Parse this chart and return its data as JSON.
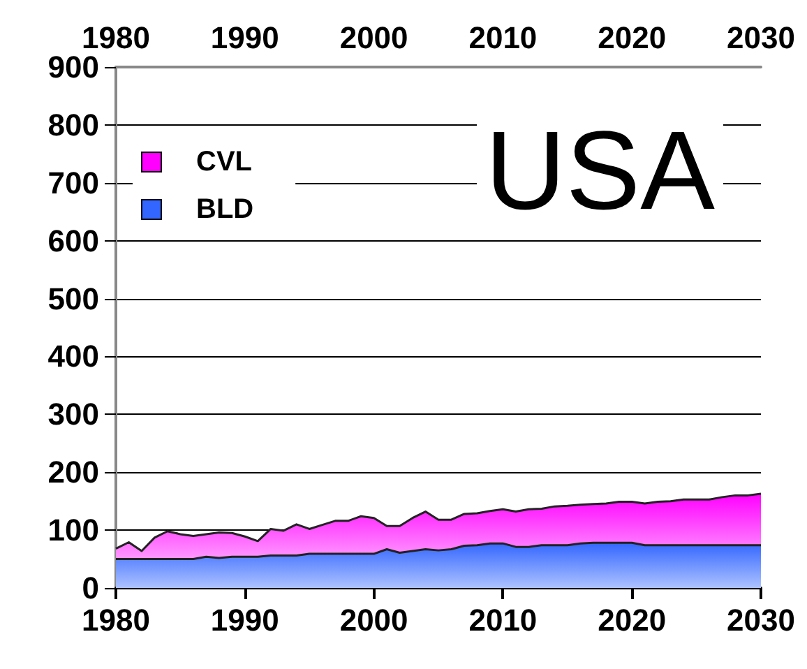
{
  "chart_data": {
    "type": "area",
    "stacked": true,
    "annotations": [
      "USA"
    ],
    "x": [
      1980,
      1981,
      1982,
      1983,
      1984,
      1985,
      1986,
      1987,
      1988,
      1989,
      1990,
      1991,
      1992,
      1993,
      1994,
      1995,
      1996,
      1997,
      1998,
      1999,
      2000,
      2001,
      2002,
      2003,
      2004,
      2005,
      2006,
      2007,
      2008,
      2009,
      2010,
      2011,
      2012,
      2013,
      2014,
      2015,
      2016,
      2017,
      2018,
      2019,
      2020,
      2021,
      2022,
      2023,
      2024,
      2025,
      2026,
      2027,
      2028,
      2029,
      2030
    ],
    "series": [
      {
        "name": "BLD",
        "color": "#3366ff",
        "values": [
          50,
          50,
          50,
          50,
          50,
          50,
          50,
          54,
          52,
          54,
          54,
          54,
          56,
          56,
          56,
          59,
          59,
          59,
          59,
          59,
          59,
          67,
          61,
          64,
          67,
          65,
          67,
          73,
          74,
          77,
          77,
          71,
          71,
          74,
          74,
          74,
          77,
          78,
          78,
          78,
          78,
          74,
          74,
          74,
          74,
          74,
          74,
          74,
          74,
          74,
          74
        ]
      },
      {
        "name": "CVL",
        "color": "#ff00ff",
        "values": [
          18,
          29,
          14,
          37,
          48,
          43,
          40,
          39,
          44,
          41,
          35,
          27,
          46,
          43,
          54,
          43,
          50,
          57,
          57,
          65,
          62,
          40,
          46,
          57,
          65,
          53,
          51,
          55,
          55,
          56,
          59,
          61,
          65,
          63,
          67,
          68,
          67,
          67,
          68,
          71,
          71,
          72,
          75,
          76,
          79,
          79,
          79,
          83,
          86,
          86,
          89
        ]
      }
    ],
    "xlim": [
      1980,
      2030
    ],
    "xticks": [
      1980,
      1990,
      2000,
      2010,
      2020,
      2030
    ],
    "x2lim": [
      1980,
      2030
    ],
    "x2ticks": [
      1980,
      1990,
      2000,
      2010,
      2020,
      2030
    ],
    "ylim": [
      0,
      900
    ],
    "yticks": [
      0,
      100,
      200,
      300,
      400,
      500,
      600,
      700,
      800,
      900
    ],
    "grid": "y",
    "legend": "top left"
  }
}
